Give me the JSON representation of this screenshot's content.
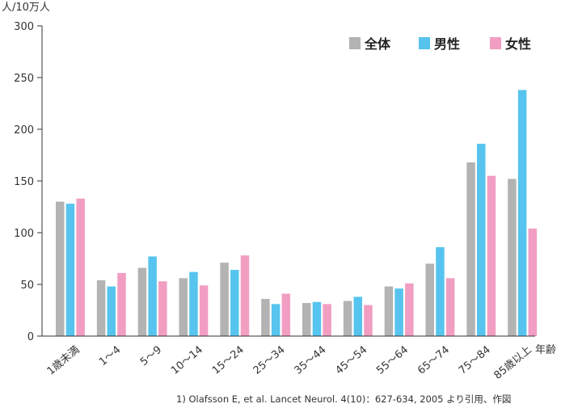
{
  "chart_data": {
    "type": "bar",
    "ylabel": "人/10万人",
    "xlabel": "年齢",
    "ylim": [
      0,
      300
    ],
    "yticks": [
      0,
      50,
      100,
      150,
      200,
      250,
      300
    ],
    "grid": false,
    "legend_position": "top-right",
    "categories": [
      "1歳未満",
      "1～4",
      "5～9",
      "10～14",
      "15～24",
      "25～34",
      "35～44",
      "45～54",
      "55～64",
      "65～74",
      "75～84",
      "85歳以上"
    ],
    "series": [
      {
        "name": "全体",
        "color": "#b3b3b3",
        "values": [
          130,
          54,
          66,
          56,
          71,
          36,
          32,
          34,
          48,
          70,
          168,
          152
        ]
      },
      {
        "name": "男性",
        "color": "#56c4ee",
        "values": [
          128,
          48,
          77,
          62,
          64,
          31,
          33,
          38,
          46,
          86,
          186,
          238
        ]
      },
      {
        "name": "女性",
        "color": "#f19ec2",
        "values": [
          133,
          61,
          53,
          49,
          78,
          41,
          31,
          30,
          51,
          56,
          155,
          104
        ]
      }
    ]
  },
  "citation": "1) Olafsson E, et al. Lancet Neurol. 4(10)：627-634, 2005 より引用、作図"
}
